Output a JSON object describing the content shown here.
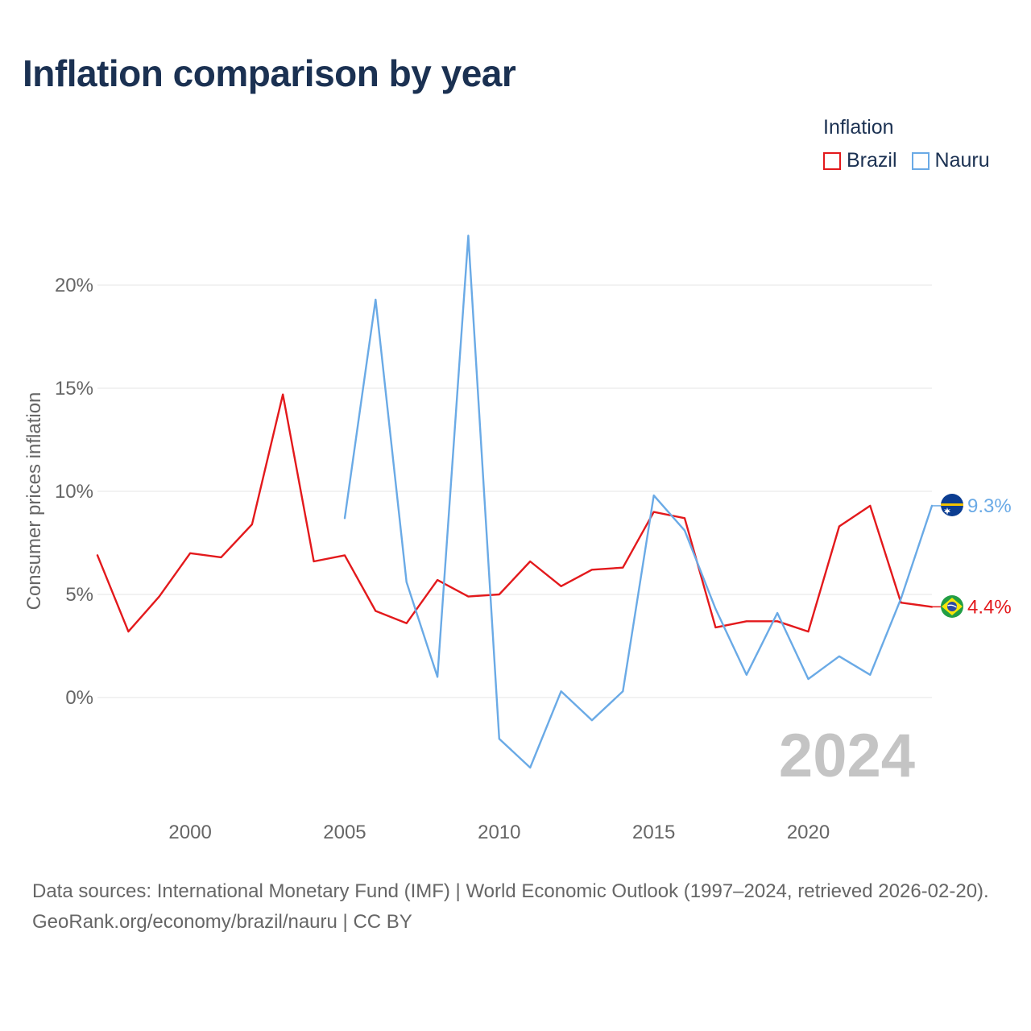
{
  "title": "Inflation comparison by year",
  "legend": {
    "title": "Inflation",
    "items": [
      {
        "name": "Brazil",
        "color": "#e3191c"
      },
      {
        "name": "Nauru",
        "color": "#6aaae6"
      }
    ]
  },
  "source": {
    "line1": "Data sources: International Monetary Fund (IMF) | World Economic Outlook (1997–2024, retrieved 2026-02-20).",
    "line2": "GeoRank.org/economy/brazil/nauru | CC BY"
  },
  "chart_data": {
    "type": "line",
    "title": "Inflation comparison by year",
    "ylabel": "Consumer prices inflation",
    "xlabel": "",
    "xlim": [
      1997,
      2024
    ],
    "ylim": [
      -4.6,
      23.5
    ],
    "xticks": [
      2000,
      2005,
      2010,
      2015,
      2020
    ],
    "yticks": [
      0,
      5,
      10,
      15,
      20
    ],
    "ytick_labels": [
      "0%",
      "5%",
      "10%",
      "15%",
      "20%"
    ],
    "year_watermark": "2024",
    "series": [
      {
        "name": "Brazil",
        "color": "#e3191c",
        "end_label": "4.4%",
        "flag": "brazil-flag",
        "x": [
          1997,
          1998,
          1999,
          2000,
          2001,
          2002,
          2003,
          2004,
          2005,
          2006,
          2007,
          2008,
          2009,
          2010,
          2011,
          2012,
          2013,
          2014,
          2015,
          2016,
          2017,
          2018,
          2019,
          2020,
          2021,
          2022,
          2023,
          2024
        ],
        "values": [
          6.9,
          3.2,
          4.9,
          7.0,
          6.8,
          8.4,
          14.7,
          6.6,
          6.9,
          4.2,
          3.6,
          5.7,
          4.9,
          5.0,
          6.6,
          5.4,
          6.2,
          6.3,
          9.0,
          8.7,
          3.4,
          3.7,
          3.7,
          3.2,
          8.3,
          9.3,
          4.6,
          4.4
        ]
      },
      {
        "name": "Nauru",
        "color": "#6aaae6",
        "end_label": "9.3%",
        "flag": "nauru-flag",
        "x": [
          2005,
          2006,
          2007,
          2008,
          2009,
          2010,
          2011,
          2012,
          2013,
          2014,
          2015,
          2016,
          2017,
          2018,
          2019,
          2020,
          2021,
          2022,
          2023,
          2024
        ],
        "values": [
          8.7,
          19.3,
          5.6,
          1.0,
          22.4,
          -2.0,
          -3.4,
          0.3,
          -1.1,
          0.3,
          9.8,
          8.1,
          4.3,
          1.1,
          4.1,
          0.9,
          2.0,
          1.1,
          4.8,
          9.3
        ]
      }
    ]
  }
}
